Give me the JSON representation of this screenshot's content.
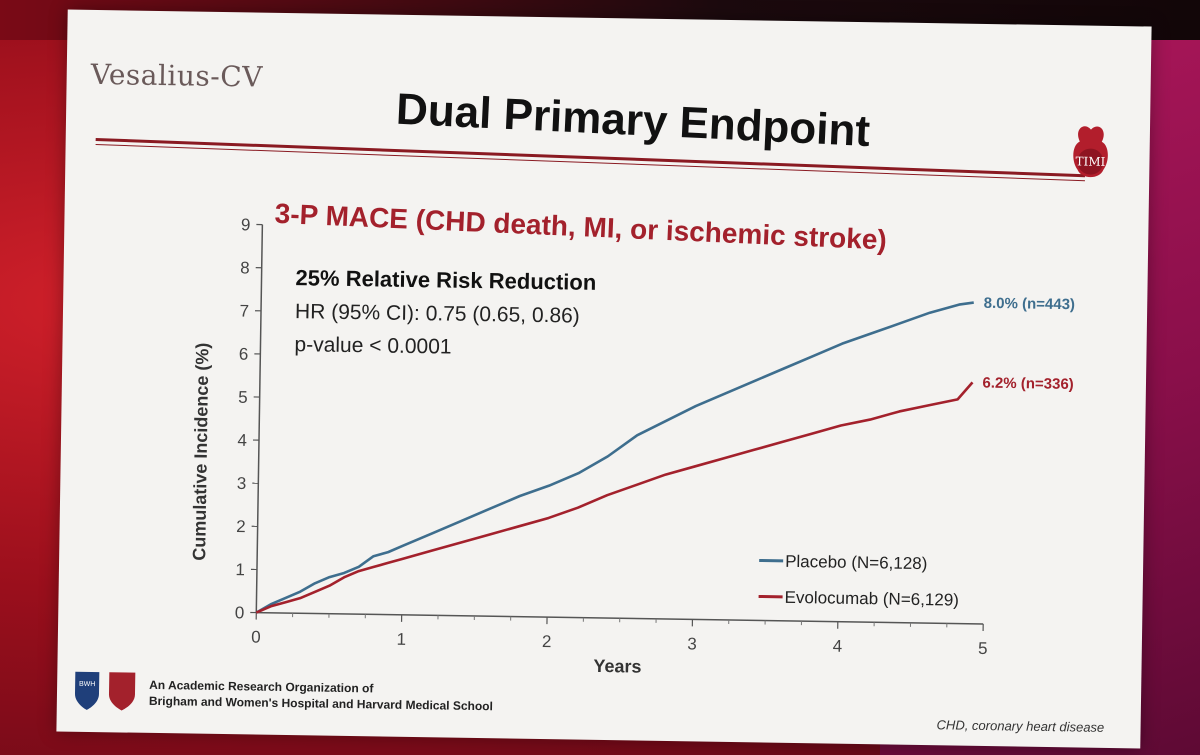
{
  "slide": {
    "logo_text": "Vesalius-CV",
    "title": "Dual Primary Endpoint",
    "timi_label": "TIMI",
    "bwh_label": "BWH",
    "footer_line1": "An Academic Research Organization of",
    "footer_line2": "Brigham and Women's Hospital and Harvard Medical School",
    "footnote": "CHD, coronary heart disease"
  },
  "chart_data": {
    "type": "line",
    "title": "3-P MACE (CHD death, MI, or ischemic stroke)",
    "xlabel": "Years",
    "ylabel": "Cumulative Incidence (%)",
    "xlim": [
      0,
      5
    ],
    "ylim": [
      0,
      9
    ],
    "xticks": [
      0,
      1,
      2,
      3,
      4,
      5
    ],
    "yticks": [
      0,
      1,
      2,
      3,
      4,
      5,
      6,
      7,
      8,
      9
    ],
    "grid": false,
    "legend_position": "bottom-right",
    "annotation": {
      "headline": "25% Relative Risk Reduction",
      "hr": "HR (95% CI): 0.75 (0.65, 0.86)",
      "p": "p-value < 0.0001"
    },
    "series": [
      {
        "name": "Placebo (N=6,128)",
        "color": "#3e6e8e",
        "end_label": "8.0% (n=443)",
        "x": [
          0,
          0.1,
          0.2,
          0.3,
          0.4,
          0.5,
          0.6,
          0.7,
          0.8,
          0.9,
          1.0,
          1.2,
          1.4,
          1.6,
          1.8,
          2.0,
          2.2,
          2.4,
          2.6,
          2.8,
          3.0,
          3.2,
          3.4,
          3.6,
          3.8,
          4.0,
          4.2,
          4.4,
          4.6,
          4.8,
          4.9
        ],
        "y": [
          0,
          0.2,
          0.35,
          0.5,
          0.7,
          0.85,
          0.95,
          1.1,
          1.35,
          1.45,
          1.6,
          1.9,
          2.2,
          2.5,
          2.8,
          3.05,
          3.35,
          3.75,
          4.25,
          4.6,
          4.95,
          5.25,
          5.55,
          5.85,
          6.15,
          6.45,
          6.7,
          6.95,
          7.2,
          7.4,
          7.45
        ]
      },
      {
        "name": "Evolocumab (N=6,129)",
        "color": "#a3212c",
        "end_label": "6.2% (n=336)",
        "x": [
          0,
          0.1,
          0.2,
          0.3,
          0.4,
          0.5,
          0.6,
          0.7,
          0.8,
          0.9,
          1.0,
          1.2,
          1.4,
          1.6,
          1.8,
          2.0,
          2.2,
          2.4,
          2.6,
          2.8,
          3.0,
          3.2,
          3.4,
          3.6,
          3.8,
          4.0,
          4.2,
          4.4,
          4.6,
          4.8,
          4.9
        ],
        "y": [
          0,
          0.15,
          0.25,
          0.35,
          0.5,
          0.65,
          0.85,
          1.0,
          1.1,
          1.2,
          1.3,
          1.5,
          1.7,
          1.9,
          2.1,
          2.3,
          2.55,
          2.85,
          3.1,
          3.35,
          3.55,
          3.75,
          3.95,
          4.15,
          4.35,
          4.55,
          4.7,
          4.9,
          5.05,
          5.2,
          5.6
        ]
      }
    ]
  }
}
